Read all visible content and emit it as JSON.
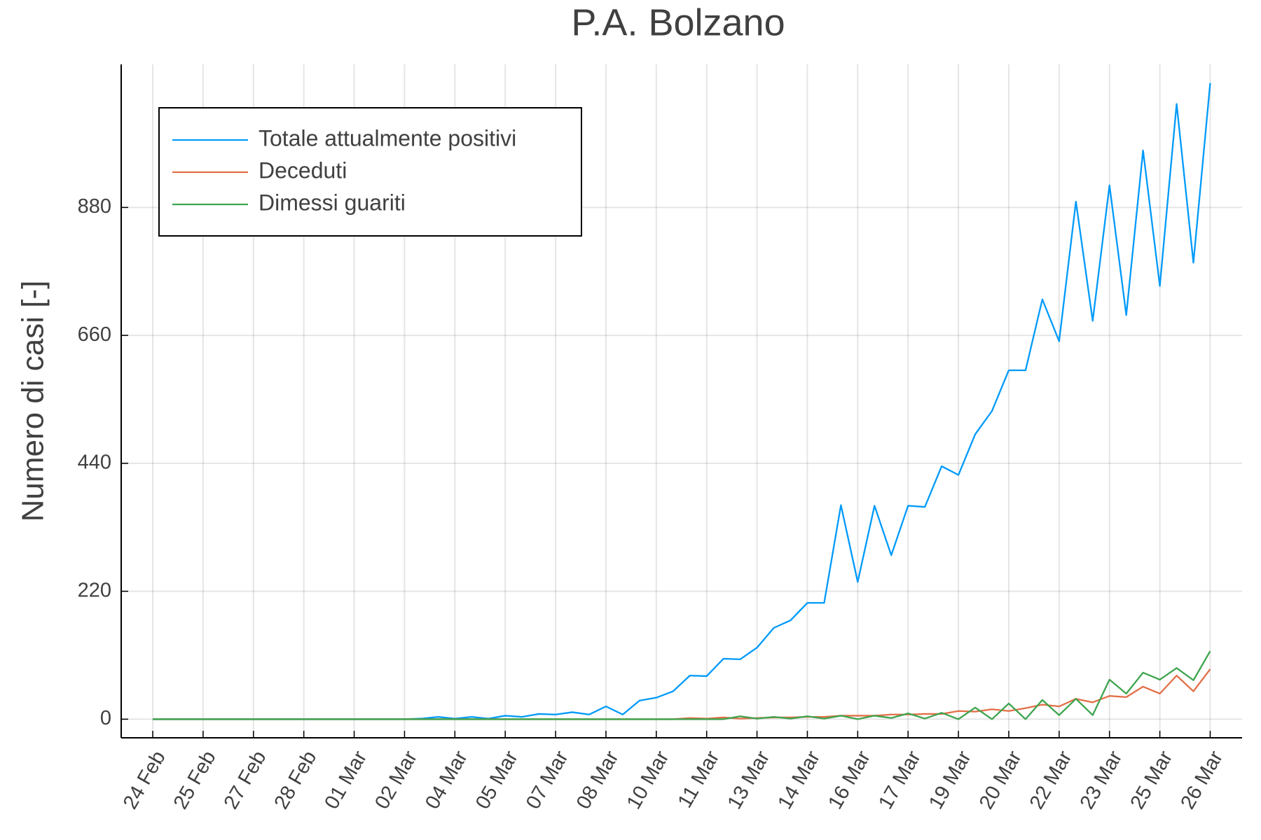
{
  "chart_data": {
    "type": "line",
    "title": "P.A. Bolzano",
    "ylabel": "Numero di casi [-]",
    "categories": [
      "24 Feb",
      null,
      null,
      "25 Feb",
      null,
      null,
      "27 Feb",
      null,
      null,
      "28 Feb",
      null,
      null,
      "01 Mar",
      null,
      null,
      "02 Mar",
      null,
      null,
      "04 Mar",
      null,
      null,
      "05 Mar",
      null,
      null,
      "07 Mar",
      null,
      null,
      "08 Mar",
      null,
      null,
      "10 Mar",
      null,
      null,
      "11 Mar",
      null,
      null,
      "13 Mar",
      null,
      null,
      "14 Mar",
      null,
      null,
      "16 Mar",
      null,
      null,
      "17 Mar",
      null,
      null,
      "19 Mar",
      null,
      null,
      "20 Mar",
      null,
      null,
      "22 Mar",
      null,
      null,
      "23 Mar",
      null,
      null,
      "25 Mar",
      null,
      null,
      "26 Mar"
    ],
    "series": [
      {
        "name": "Totale attualmente positivi",
        "color": "#009AFA",
        "values": [
          0,
          0,
          0,
          0,
          0,
          0,
          0,
          0,
          0,
          0,
          0,
          0,
          0,
          0,
          0,
          0,
          1,
          4,
          1,
          4,
          1,
          6,
          4,
          9,
          8,
          12,
          8,
          22,
          8,
          32,
          37,
          48,
          75,
          74,
          104,
          103,
          123,
          157,
          170,
          200,
          200,
          368,
          236,
          367,
          282,
          367,
          365,
          435,
          420,
          490,
          530,
          600,
          600,
          722,
          650,
          890,
          685,
          918,
          695,
          978,
          745,
          1058,
          785,
          1094
        ]
      },
      {
        "name": "Deceduti",
        "color": "#E36F47",
        "values": [
          0,
          0,
          0,
          0,
          0,
          0,
          0,
          0,
          0,
          0,
          0,
          0,
          0,
          0,
          0,
          0,
          0,
          0,
          0,
          0,
          0,
          0,
          0,
          0,
          0,
          0,
          0,
          0,
          0,
          0,
          0,
          0,
          2,
          1,
          3,
          1,
          2,
          3,
          3,
          4,
          4,
          6,
          6,
          6,
          8,
          8,
          9,
          9,
          14,
          13,
          17,
          14,
          19,
          25,
          22,
          35,
          29,
          40,
          38,
          56,
          44,
          75,
          48,
          86
        ]
      },
      {
        "name": "Dimessi guariti",
        "color": "#3EA44E",
        "values": [
          0,
          0,
          0,
          0,
          0,
          0,
          0,
          0,
          0,
          0,
          0,
          0,
          0,
          0,
          0,
          0,
          0,
          0,
          0,
          0,
          0,
          0,
          0,
          0,
          0,
          0,
          0,
          0,
          0,
          0,
          0,
          0,
          0,
          0,
          0,
          5,
          1,
          4,
          1,
          5,
          1,
          6,
          0,
          6,
          2,
          10,
          1,
          11,
          0,
          20,
          0,
          27,
          0,
          33,
          7,
          35,
          7,
          68,
          44,
          80,
          68,
          88,
          67,
          117
        ]
      }
    ],
    "ylim": [
      -32,
      1126
    ],
    "yticks": [
      0,
      220,
      440,
      660,
      880
    ],
    "grid": true,
    "legend": "top-left"
  }
}
